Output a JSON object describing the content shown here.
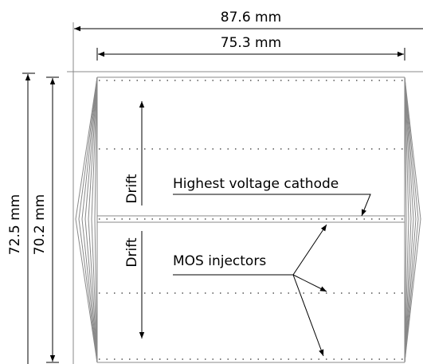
{
  "dimensions": {
    "outer_width": "87.6 mm",
    "inner_width": "75.3 mm",
    "outer_height": "72.5 mm",
    "inner_height": "70.2 mm"
  },
  "labels": {
    "drift_upper": "Drift",
    "drift_lower": "Drift",
    "cathode": "Highest voltage cathode",
    "injectors": "MOS injectors"
  }
}
